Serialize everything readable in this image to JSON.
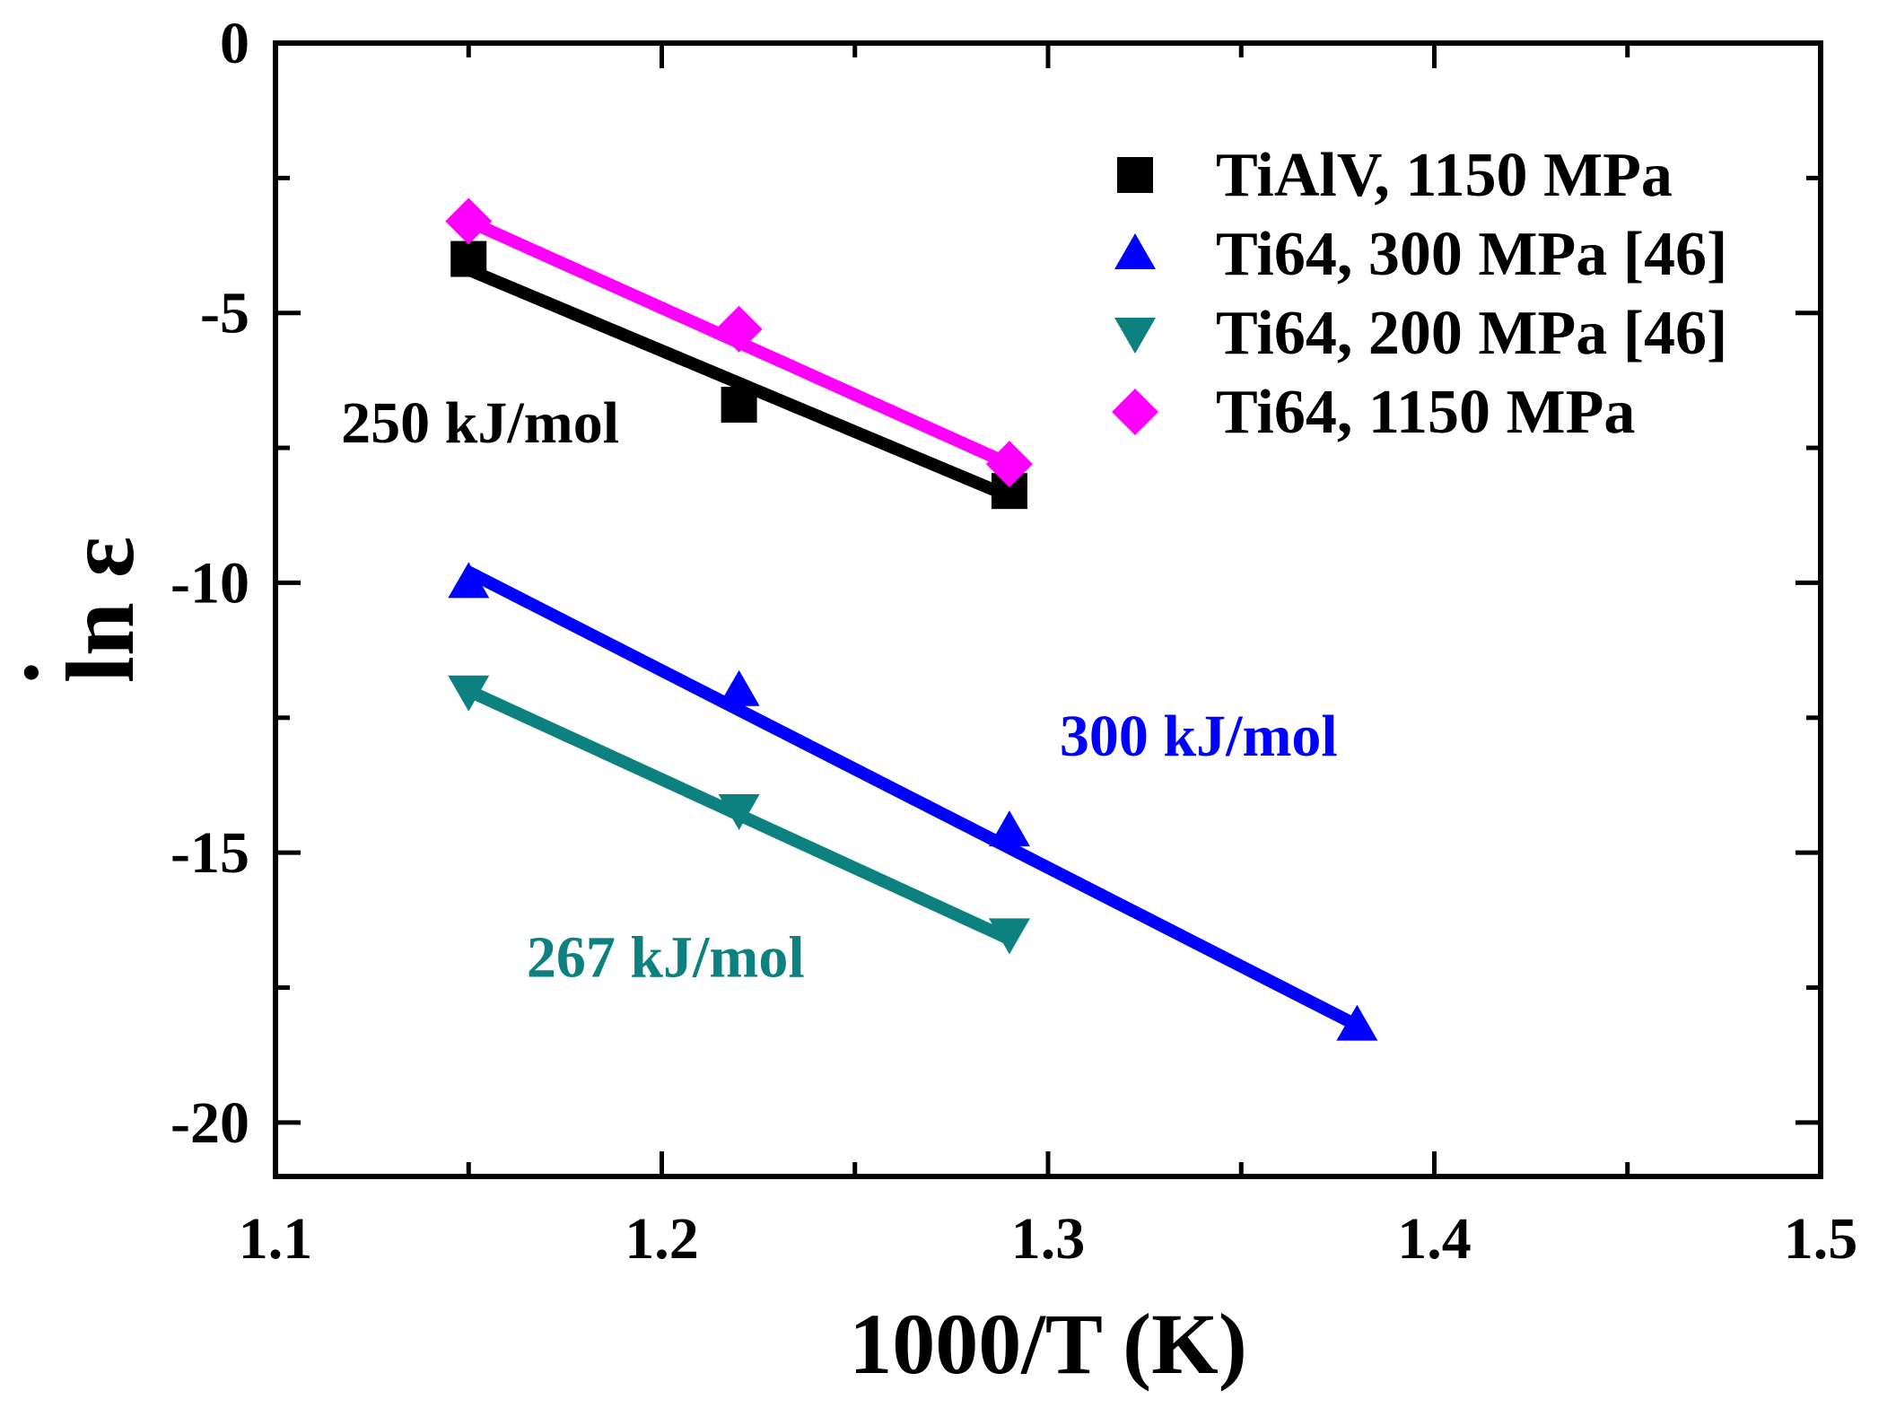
{
  "chart_data": {
    "type": "scatter",
    "title": "",
    "xlabel": "1000/T (K)",
    "ylabel_prefix": "ln ",
    "ylabel_symbol": "ε",
    "ylabel_dot": "˙",
    "xlim": [
      1.1,
      1.5
    ],
    "ylim": [
      -21,
      0
    ],
    "xticks": [
      1.1,
      1.2,
      1.3,
      1.4,
      1.5
    ],
    "xtick_labels": [
      "1.1",
      "1.2",
      "1.3",
      "1.4",
      "1.5"
    ],
    "yticks": [
      0,
      -5,
      -10,
      -15,
      -20
    ],
    "ytick_labels": [
      "0",
      "-5",
      "-10",
      "-15",
      "-20"
    ],
    "x_minor_step": 0.05,
    "y_minor_step": 2.5,
    "grid": false,
    "legend_position": "top-right",
    "series": [
      {
        "name": "TiAlV, 1150 MPa",
        "marker": "square",
        "color": "#000000",
        "x": [
          1.15,
          1.22,
          1.29
        ],
        "y": [
          -4.0,
          -6.7,
          -8.3
        ],
        "fit": {
          "x": [
            1.15,
            1.29
          ],
          "y": [
            -4.2,
            -8.4
          ]
        }
      },
      {
        "name": "Ti64, 300 MPa [46]",
        "marker": "triangle-up",
        "color": "#0000ff",
        "x": [
          1.15,
          1.22,
          1.29,
          1.38
        ],
        "y": [
          -10.0,
          -12.0,
          -14.6,
          -18.2
        ],
        "fit": {
          "x": [
            1.15,
            1.38
          ],
          "y": [
            -9.8,
            -18.2
          ]
        }
      },
      {
        "name": "Ti64, 200 MPa [46]",
        "marker": "triangle-down",
        "color": "#0d8080",
        "x": [
          1.15,
          1.22,
          1.29
        ],
        "y": [
          -12.0,
          -14.2,
          -16.5
        ],
        "fit": {
          "x": [
            1.15,
            1.29
          ],
          "y": [
            -12.0,
            -16.6
          ]
        }
      },
      {
        "name": "Ti64, 1150 MPa",
        "marker": "diamond",
        "color": "#ff00ff",
        "x": [
          1.15,
          1.22,
          1.29
        ],
        "y": [
          -3.3,
          -5.3,
          -7.8
        ],
        "fit": {
          "x": [
            1.15,
            1.29
          ],
          "y": [
            -3.3,
            -7.8
          ]
        }
      }
    ],
    "annotations": [
      {
        "text": "250 kJ/mol",
        "color": "#000000",
        "x": 1.117,
        "y": -7.4
      },
      {
        "text": "300 kJ/mol",
        "color": "#0000ff",
        "x": 1.303,
        "y": -13.2
      },
      {
        "text": "267 kJ/mol",
        "color": "#0d8080",
        "x": 1.165,
        "y": -17.3
      }
    ]
  }
}
